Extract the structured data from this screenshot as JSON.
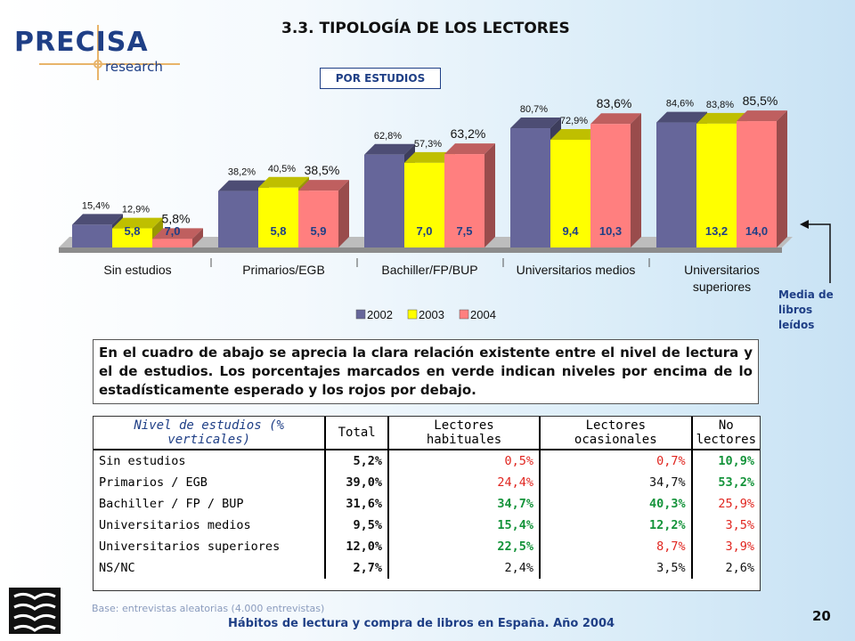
{
  "header": {
    "logo_text": "PRECISA",
    "logo_sub": "research",
    "title": "3.3. TIPOLOGÍA DE LOS LECTORES"
  },
  "chart_data": {
    "type": "bar",
    "subtitle": "POR ESTUDIOS",
    "categories": [
      [
        "Sin estudios"
      ],
      [
        "Primarios/EGB"
      ],
      [
        "Bachiller/FP/BUP"
      ],
      [
        "Universitarios medios"
      ],
      [
        "Universitarios",
        "superiores"
      ]
    ],
    "series": [
      {
        "name": "2002",
        "color": "#66669a",
        "values": [
          15.4,
          38.2,
          62.8,
          80.7,
          84.6
        ],
        "labels": [
          "15,4%",
          "38,2%",
          "62,8%",
          "80,7%",
          "84,6%"
        ],
        "books": [
          null,
          null,
          null,
          null,
          null
        ]
      },
      {
        "name": "2003",
        "color": "#ffff00",
        "values": [
          12.9,
          40.5,
          57.3,
          72.9,
          83.8
        ],
        "labels": [
          "12,9%",
          "40,5%",
          "57,3%",
          "72,9%",
          "83,8%"
        ],
        "books": [
          "5,8",
          "5,8",
          "7,0",
          "9,4",
          "13,2"
        ]
      },
      {
        "name": "2004",
        "color": "#ff7f7f",
        "values": [
          5.8,
          38.5,
          63.2,
          83.6,
          85.5
        ],
        "labels": [
          "5,8%",
          "38,5%",
          "63,2%",
          "83,6%",
          "85,5%"
        ],
        "books": [
          "7,0",
          "5,9",
          "7,5",
          "10,3",
          "14,0"
        ]
      }
    ],
    "ylim": [
      0,
      100
    ],
    "legend": "bottom-center",
    "grid": false,
    "annotation": "Media de libros leídos"
  },
  "summary_text": "En el cuadro de abajo se aprecia la clara relación existente entre el nivel de lectura y el de estudios. Los porcentajes marcados en verde indican niveles por encima de lo estadísticamente esperado y los rojos por debajo.",
  "table": {
    "headers": [
      "Nivel de estudios (% verticales)",
      "Total",
      "Lectores habituales",
      "Lectores ocasionales",
      "No lectores"
    ],
    "rows": [
      {
        "label": "Sin estudios",
        "cells": [
          [
            "5,2%",
            "k"
          ],
          [
            "0,5%",
            "r"
          ],
          [
            "0,7%",
            "r"
          ],
          [
            "10,9%",
            "g"
          ]
        ]
      },
      {
        "label": "Primarios / EGB",
        "cells": [
          [
            "39,0%",
            "k"
          ],
          [
            "24,4%",
            "r"
          ],
          [
            "34,7%",
            "k"
          ],
          [
            "53,2%",
            "g"
          ]
        ]
      },
      {
        "label": "Bachiller / FP / BUP",
        "cells": [
          [
            "31,6%",
            "k"
          ],
          [
            "34,7%",
            "g"
          ],
          [
            "40,3%",
            "g"
          ],
          [
            "25,9%",
            "r"
          ]
        ]
      },
      {
        "label": "Universitarios medios",
        "cells": [
          [
            "9,5%",
            "k"
          ],
          [
            "15,4%",
            "g"
          ],
          [
            "12,2%",
            "g"
          ],
          [
            "3,5%",
            "r"
          ]
        ]
      },
      {
        "label": "Universitarios superiores",
        "cells": [
          [
            "12,0%",
            "k"
          ],
          [
            "22,5%",
            "g"
          ],
          [
            "8,7%",
            "r"
          ],
          [
            "3,9%",
            "r"
          ]
        ]
      },
      {
        "label": "NS/NC",
        "cells": [
          [
            "2,7%",
            "k"
          ],
          [
            "2,4%",
            "k"
          ],
          [
            "3,5%",
            "k"
          ],
          [
            "2,6%",
            "k"
          ]
        ]
      }
    ]
  },
  "footnote": "Base: entrevistas aleatorias (4.000 entrevistas)",
  "footer": "Hábitos de lectura y compra de libros en España. Año 2004",
  "page_number": "20"
}
